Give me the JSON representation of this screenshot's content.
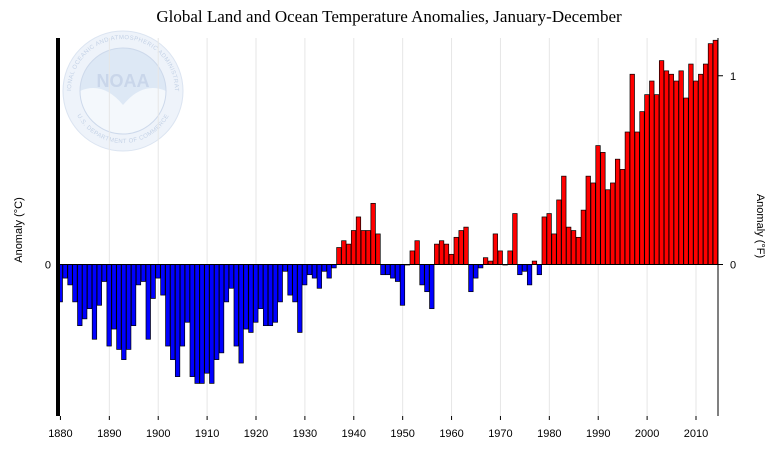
{
  "chart_data": {
    "type": "bar",
    "title": "Global Land and Ocean Temperature Anomalies, January-December",
    "ylabel_left": "Anomaly (°C)",
    "ylabel_right": "Anomaly (°F)",
    "y_tick_left": [
      "0"
    ],
    "y_tick_right": [
      "0",
      "1"
    ],
    "x_ticks": [
      "1880",
      "1890",
      "1900",
      "1910",
      "1920",
      "1930",
      "1940",
      "1950",
      "1960",
      "1970",
      "1980",
      "1990",
      "2000",
      "2010"
    ],
    "ylim_c": [
      -0.43,
      0.62
    ],
    "grid": "vertical",
    "colors": {
      "positive": "#ff0000",
      "negative": "#0000ff"
    },
    "logo": {
      "name": "noara-logo",
      "text": "NOAA",
      "ring_text": "NATIONAL OCEANIC AND ATMOSPHERIC ADMINISTRATION",
      "ring_text_bottom": "U.S. DEPARTMENT OF COMMERCE"
    },
    "x_start": 1880,
    "values": [
      -0.11,
      -0.04,
      -0.06,
      -0.11,
      -0.18,
      -0.16,
      -0.13,
      -0.22,
      -0.12,
      -0.05,
      -0.24,
      -0.19,
      -0.25,
      -0.28,
      -0.25,
      -0.18,
      -0.06,
      -0.05,
      -0.22,
      -0.1,
      -0.04,
      -0.09,
      -0.24,
      -0.28,
      -0.33,
      -0.24,
      -0.17,
      -0.33,
      -0.35,
      -0.35,
      -0.32,
      -0.35,
      -0.28,
      -0.26,
      -0.11,
      -0.07,
      -0.24,
      -0.29,
      -0.19,
      -0.2,
      -0.17,
      -0.13,
      -0.18,
      -0.18,
      -0.17,
      -0.11,
      -0.02,
      -0.09,
      -0.11,
      -0.2,
      -0.06,
      -0.03,
      -0.04,
      -0.07,
      -0.02,
      -0.04,
      -0.01,
      0.05,
      0.07,
      0.06,
      0.1,
      0.14,
      0.1,
      0.1,
      0.18,
      0.09,
      -0.03,
      -0.03,
      -0.04,
      -0.05,
      -0.12,
      0.0,
      0.04,
      0.07,
      -0.06,
      -0.08,
      -0.13,
      0.06,
      0.07,
      0.06,
      0.03,
      0.08,
      0.1,
      0.11,
      -0.08,
      -0.04,
      -0.01,
      0.02,
      0.01,
      0.09,
      0.04,
      0.0,
      0.04,
      0.15,
      -0.03,
      -0.02,
      -0.06,
      0.01,
      -0.03,
      0.14,
      0.15,
      0.09,
      0.19,
      0.26,
      0.11,
      0.1,
      0.08,
      0.16,
      0.26,
      0.24,
      0.35,
      0.33,
      0.22,
      0.24,
      0.31,
      0.28,
      0.39,
      0.56,
      0.39,
      0.45,
      0.5,
      0.54,
      0.5,
      0.6,
      0.57,
      0.56,
      0.54,
      0.57,
      0.49,
      0.59,
      0.54,
      0.56,
      0.59,
      0.65,
      0.66
    ]
  }
}
